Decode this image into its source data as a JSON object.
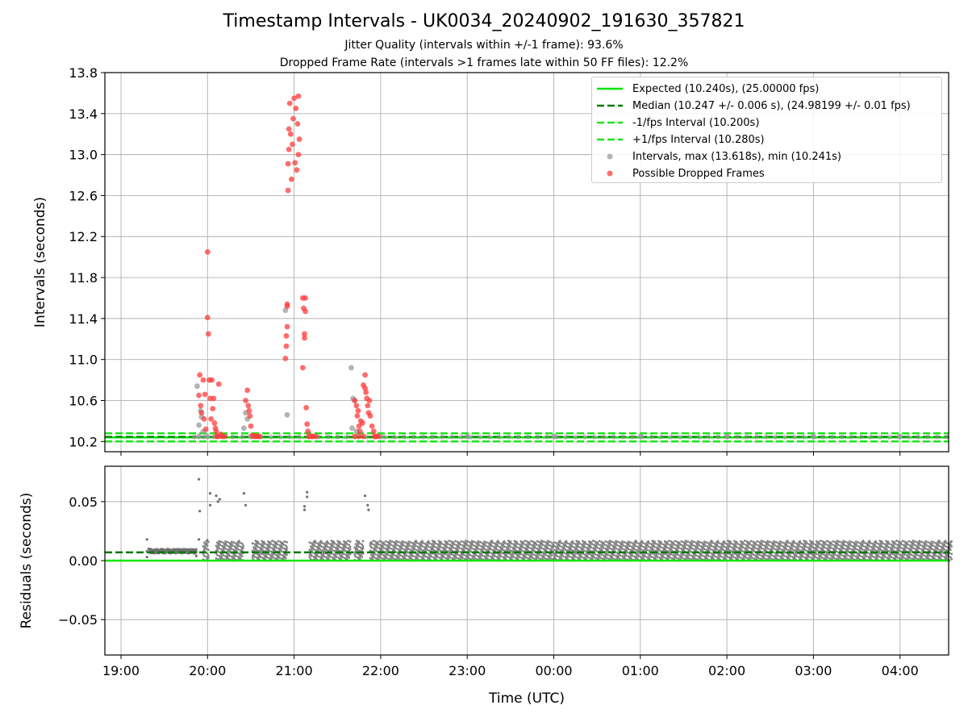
{
  "figure": {
    "title": "Timestamp Intervals - UK0034_20240902_191630_357821",
    "subtitle_1": "Jitter Quality (intervals within +/-1 frame): 93.6%",
    "subtitle_2": "Dropped Frame Rate (intervals >1 frames late within 50 FF files): 12.2%"
  },
  "legend": {
    "placement": "top-right",
    "items": [
      {
        "label": "Expected (10.240s), (25.00000 fps)",
        "style": "solid-line",
        "color": "#00e600"
      },
      {
        "label": "Median (10.247 +/- 0.006 s), (24.98199 +/- 0.01 fps)",
        "style": "dashed-line",
        "color": "#007a00"
      },
      {
        "label": "-1/fps Interval (10.200s)",
        "style": "dashed-line",
        "color": "#1be61b"
      },
      {
        "label": "+1/fps Interval (10.280s)",
        "style": "dashed-line",
        "color": "#1be61b"
      },
      {
        "label": "Intervals, max (13.618s), min (10.241s)",
        "style": "marker",
        "color": "#999999"
      },
      {
        "label": "Possible Dropped Frames",
        "style": "marker",
        "color": "#ff3b3b"
      }
    ]
  },
  "chart_data": [
    {
      "type": "scatter",
      "ylabel": "Intervals (seconds)",
      "xlabel": "",
      "ylim": [
        10.1,
        13.8
      ],
      "y_ticks": [
        "10.2",
        "10.6",
        "11.0",
        "11.4",
        "11.8",
        "12.2",
        "12.6",
        "13.0",
        "13.4",
        "13.8"
      ],
      "grid": true,
      "reference_lines": [
        {
          "name": "Expected",
          "y": 10.24,
          "color": "#00e600",
          "style": "solid"
        },
        {
          "name": "Median",
          "y": 10.247,
          "color": "#007a00",
          "style": "dashed"
        },
        {
          "name": "-1/fps Interval",
          "y": 10.2,
          "color": "#1be61b",
          "style": "dashed"
        },
        {
          "name": "+1/fps Interval",
          "y": 10.28,
          "color": "#1be61b",
          "style": "dashed"
        }
      ],
      "series": [
        {
          "name": "Intervals",
          "color": "#999999",
          "points": [
            [
              19.88,
              10.74
            ],
            [
              19.9,
              10.36
            ],
            [
              19.92,
              10.5
            ],
            [
              19.93,
              10.44
            ],
            [
              19.95,
              10.3
            ],
            [
              20.44,
              10.48
            ],
            [
              20.46,
              10.42
            ],
            [
              20.42,
              10.33
            ],
            [
              20.9,
              11.48
            ],
            [
              20.92,
              10.46
            ],
            [
              21.66,
              10.92
            ],
            [
              21.68,
              10.62
            ],
            [
              21.7,
              10.6
            ],
            [
              21.67,
              10.33
            ],
            [
              21.72,
              10.3
            ],
            [
              19.9,
              10.25
            ],
            [
              20.0,
              10.25
            ],
            [
              20.1,
              10.25
            ],
            [
              20.5,
              10.25
            ],
            [
              21.2,
              10.25
            ],
            [
              22.0,
              10.25
            ],
            [
              23.0,
              10.25
            ],
            [
              0.0,
              10.25
            ],
            [
              1.0,
              10.25
            ],
            [
              2.0,
              10.25
            ],
            [
              3.0,
              10.25
            ],
            [
              4.0,
              10.25
            ]
          ]
        },
        {
          "name": "Possible Dropped Frames",
          "color": "#ff3b3b",
          "points": [
            [
              19.9,
              10.65
            ],
            [
              19.91,
              10.85
            ],
            [
              19.92,
              10.55
            ],
            [
              19.93,
              10.48
            ],
            [
              19.95,
              10.8
            ],
            [
              19.96,
              10.42
            ],
            [
              19.97,
              10.66
            ],
            [
              19.98,
              10.32
            ],
            [
              20.0,
              12.05
            ],
            [
              20.0,
              11.41
            ],
            [
              20.01,
              11.25
            ],
            [
              20.02,
              10.8
            ],
            [
              20.03,
              10.62
            ],
            [
              20.04,
              10.42
            ],
            [
              20.05,
              10.8
            ],
            [
              20.06,
              10.52
            ],
            [
              20.07,
              10.62
            ],
            [
              20.08,
              10.38
            ],
            [
              20.09,
              10.33
            ],
            [
              20.1,
              10.3
            ],
            [
              20.11,
              10.25
            ],
            [
              20.12,
              10.25
            ],
            [
              20.13,
              10.76
            ],
            [
              20.15,
              10.27
            ],
            [
              20.17,
              10.25
            ],
            [
              20.2,
              10.25
            ],
            [
              20.44,
              10.6
            ],
            [
              20.46,
              10.7
            ],
            [
              20.47,
              10.55
            ],
            [
              20.48,
              10.5
            ],
            [
              20.49,
              10.45
            ],
            [
              20.5,
              10.35
            ],
            [
              20.52,
              10.26
            ],
            [
              20.54,
              10.25
            ],
            [
              20.56,
              10.25
            ],
            [
              20.58,
              10.25
            ],
            [
              20.6,
              10.25
            ],
            [
              20.9,
              11.01
            ],
            [
              20.91,
              11.13
            ],
            [
              20.91,
              11.23
            ],
            [
              20.92,
              11.32
            ],
            [
              20.92,
              11.52
            ],
            [
              20.92,
              11.54
            ],
            [
              20.93,
              12.65
            ],
            [
              20.93,
              12.91
            ],
            [
              20.94,
              13.05
            ],
            [
              20.94,
              13.25
            ],
            [
              20.95,
              13.5
            ],
            [
              20.96,
              13.2
            ],
            [
              20.97,
              12.76
            ],
            [
              20.98,
              13.1
            ],
            [
              20.99,
              13.35
            ],
            [
              21.0,
              13.55
            ],
            [
              21.01,
              12.92
            ],
            [
              21.02,
              13.45
            ],
            [
              21.03,
              12.85
            ],
            [
              21.04,
              13.3
            ],
            [
              21.05,
              13.57
            ],
            [
              21.05,
              13.0
            ],
            [
              21.06,
              13.15
            ],
            [
              21.1,
              11.6
            ],
            [
              21.1,
              10.92
            ],
            [
              21.11,
              11.5
            ],
            [
              21.12,
              11.25
            ],
            [
              21.12,
              11.21
            ],
            [
              21.13,
              11.6
            ],
            [
              21.13,
              11.47
            ],
            [
              21.14,
              10.53
            ],
            [
              21.15,
              10.37
            ],
            [
              21.16,
              10.3
            ],
            [
              21.17,
              10.25
            ],
            [
              21.2,
              10.25
            ],
            [
              21.22,
              10.25
            ],
            [
              21.25,
              10.25
            ],
            [
              21.7,
              10.6
            ],
            [
              21.72,
              10.55
            ],
            [
              21.73,
              10.45
            ],
            [
              21.74,
              10.5
            ],
            [
              21.75,
              10.35
            ],
            [
              21.76,
              10.3
            ],
            [
              21.77,
              10.4
            ],
            [
              21.79,
              10.38
            ],
            [
              21.8,
              10.75
            ],
            [
              21.82,
              10.72
            ],
            [
              21.82,
              10.85
            ],
            [
              21.83,
              10.68
            ],
            [
              21.84,
              10.62
            ],
            [
              21.85,
              10.55
            ],
            [
              21.86,
              10.48
            ],
            [
              21.87,
              10.6
            ],
            [
              21.88,
              10.45
            ],
            [
              21.9,
              10.35
            ],
            [
              21.92,
              10.3
            ],
            [
              21.93,
              10.25
            ],
            [
              21.95,
              10.25
            ],
            [
              21.97,
              10.25
            ],
            [
              21.7,
              10.25
            ],
            [
              21.75,
              10.25
            ],
            [
              21.8,
              10.25
            ]
          ]
        }
      ]
    },
    {
      "type": "scatter",
      "ylabel": "Residuals (seconds)",
      "xlabel": "Time (UTC)",
      "ylim": [
        -0.08,
        0.08
      ],
      "y_ticks": [
        "−0.05",
        "0.00",
        "0.05"
      ],
      "x_ticks": [
        "19:00",
        "20:00",
        "21:00",
        "22:00",
        "23:00",
        "00:00",
        "01:00",
        "02:00",
        "03:00",
        "04:00"
      ],
      "grid": true,
      "reference_lines": [
        {
          "name": "Expected",
          "y": 0.0,
          "color": "#00e600",
          "style": "solid"
        },
        {
          "name": "Median",
          "y": 0.007,
          "color": "#007a00",
          "style": "dashed"
        }
      ],
      "series": [
        {
          "name": "Residuals",
          "color": "#707070",
          "points": [
            [
              19.9,
              0.069
            ],
            [
              19.91,
              0.042
            ],
            [
              20.03,
              0.057
            ],
            [
              20.03,
              0.047
            ],
            [
              20.1,
              0.055
            ],
            [
              20.12,
              0.05
            ],
            [
              20.14,
              0.052
            ],
            [
              20.42,
              0.057
            ],
            [
              20.44,
              0.047
            ],
            [
              21.12,
              0.043
            ],
            [
              21.12,
              0.046
            ],
            [
              21.15,
              0.058
            ],
            [
              21.15,
              0.054
            ],
            [
              21.82,
              0.055
            ],
            [
              21.85,
              0.047
            ],
            [
              21.86,
              0.043
            ],
            [
              19.3,
              0.018
            ],
            [
              19.3,
              0.008
            ],
            [
              19.32,
              0.01
            ],
            [
              19.3,
              0.003
            ],
            [
              19.87,
              0.004
            ],
            [
              19.9,
              0.018
            ]
          ]
        }
      ]
    }
  ]
}
